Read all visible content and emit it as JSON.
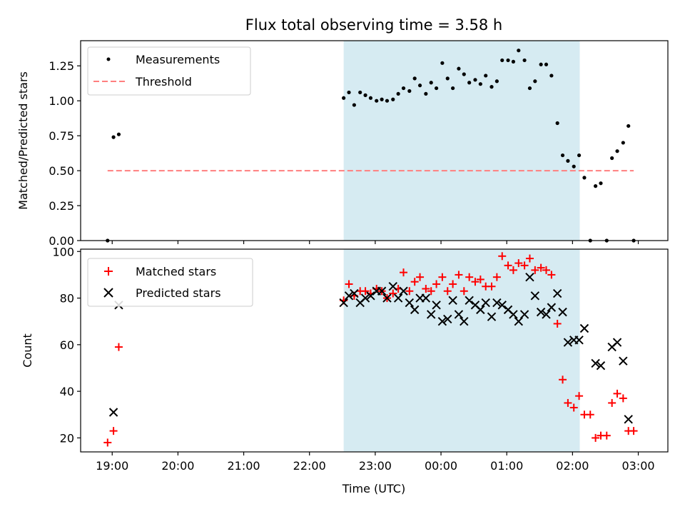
{
  "chart_data": {
    "type": "scatter",
    "title": "Flux total observing time = 3.58 h",
    "xlabel": "Time (UTC)",
    "x_ticks": [
      "19:00",
      "20:00",
      "21:00",
      "22:00",
      "23:00",
      "00:00",
      "01:00",
      "02:00",
      "03:00"
    ],
    "x_tick_hours": [
      19,
      20,
      21,
      22,
      23,
      24,
      25,
      26,
      27
    ],
    "xlim_hours": [
      18.52,
      27.45
    ],
    "shaded_region_hours": [
      22.52,
      26.11
    ],
    "shade_color": "#add8e6",
    "panels": [
      {
        "ylabel": "Matched/Predicted stars",
        "ylim": [
          0,
          1.43
        ],
        "y_ticks": [
          "0.00",
          "0.25",
          "0.50",
          "0.75",
          "1.00",
          "1.25"
        ],
        "y_tick_values": [
          0,
          0.25,
          0.5,
          0.75,
          1.0,
          1.25
        ],
        "legend_position": "upper-left",
        "series": [
          {
            "name": "Measurements",
            "marker": "dot",
            "color": "#000000",
            "x_hours": [
              18.93,
              19.02,
              19.1,
              22.52,
              22.6,
              22.68,
              22.77,
              22.85,
              22.93,
              23.02,
              23.1,
              23.18,
              23.27,
              23.35,
              23.43,
              23.52,
              23.6,
              23.68,
              23.77,
              23.85,
              23.93,
              24.02,
              24.1,
              24.18,
              24.27,
              24.35,
              24.43,
              24.52,
              24.6,
              24.68,
              24.77,
              24.85,
              24.93,
              25.02,
              25.1,
              25.18,
              25.27,
              25.35,
              25.43,
              25.52,
              25.6,
              25.68,
              25.77,
              25.85,
              25.93,
              26.02,
              26.1,
              26.18,
              26.27,
              26.35,
              26.43,
              26.52,
              26.6,
              26.68,
              26.77,
              26.85,
              26.93
            ],
            "values": [
              0.0,
              0.74,
              0.76,
              1.02,
              1.06,
              0.97,
              1.06,
              1.04,
              1.02,
              1.0,
              1.01,
              1.0,
              1.01,
              1.05,
              1.09,
              1.07,
              1.16,
              1.11,
              1.05,
              1.13,
              1.09,
              1.27,
              1.16,
              1.09,
              1.23,
              1.19,
              1.13,
              1.15,
              1.12,
              1.18,
              1.1,
              1.14,
              1.29,
              1.29,
              1.28,
              1.36,
              1.29,
              1.09,
              1.14,
              1.26,
              1.26,
              1.18,
              0.84,
              0.61,
              0.57,
              0.53,
              0.61,
              0.45,
              0.0,
              0.39,
              0.41,
              0.0,
              0.59,
              0.64,
              0.7,
              0.82,
              0.0
            ]
          },
          {
            "name": "Threshold",
            "marker": "dashed-line",
            "color": "#ff7f7f",
            "x_hours": [
              18.93,
              26.93
            ],
            "values": [
              0.5,
              0.5
            ]
          }
        ]
      },
      {
        "ylabel": "Count",
        "ylim": [
          14,
          101
        ],
        "y_ticks": [
          "20",
          "40",
          "60",
          "80",
          "100"
        ],
        "y_tick_values": [
          20,
          40,
          60,
          80,
          100
        ],
        "legend_position": "upper-left",
        "series": [
          {
            "name": "Matched stars",
            "marker": "plus",
            "color": "#ff0000",
            "x_hours": [
              18.93,
              19.02,
              19.1,
              22.52,
              22.6,
              22.68,
              22.77,
              22.85,
              22.93,
              23.02,
              23.1,
              23.18,
              23.27,
              23.35,
              23.43,
              23.52,
              23.6,
              23.68,
              23.77,
              23.85,
              23.93,
              24.02,
              24.1,
              24.18,
              24.27,
              24.35,
              24.43,
              24.52,
              24.6,
              24.68,
              24.77,
              24.85,
              24.93,
              25.02,
              25.1,
              25.18,
              25.27,
              25.35,
              25.43,
              25.52,
              25.6,
              25.68,
              25.77,
              25.85,
              25.93,
              26.02,
              26.1,
              26.18,
              26.27,
              26.35,
              26.43,
              26.52,
              26.6,
              26.68,
              26.77,
              26.85,
              26.93
            ],
            "values": [
              18,
              23,
              59,
              79,
              86,
              81,
              83,
              83,
              82,
              84,
              83,
              80,
              82,
              84,
              91,
              83,
              87,
              89,
              84,
              83,
              86,
              89,
              83,
              86,
              90,
              83,
              89,
              87,
              88,
              85,
              85,
              89,
              98,
              94,
              92,
              95,
              94,
              97,
              92,
              93,
              92,
              90,
              69,
              45,
              35,
              33,
              38,
              30,
              30,
              20,
              21,
              21,
              35,
              39,
              37,
              23,
              23
            ]
          },
          {
            "name": "Predicted stars",
            "marker": "x",
            "color": "#000000",
            "x_hours": [
              19.02,
              19.1,
              22.52,
              22.6,
              22.68,
              22.77,
              22.85,
              22.93,
              23.02,
              23.1,
              23.18,
              23.27,
              23.35,
              23.43,
              23.52,
              23.6,
              23.68,
              23.77,
              23.85,
              23.93,
              24.02,
              24.1,
              24.18,
              24.27,
              24.35,
              24.43,
              24.52,
              24.6,
              24.68,
              24.77,
              24.85,
              24.93,
              25.02,
              25.1,
              25.18,
              25.27,
              25.35,
              25.43,
              25.52,
              25.6,
              25.68,
              25.77,
              25.85,
              25.93,
              26.02,
              26.1,
              26.18,
              26.35,
              26.43,
              26.6,
              26.68,
              26.77,
              26.85
            ],
            "values": [
              31,
              77,
              78,
              81,
              82,
              78,
              80,
              81,
              83,
              83,
              80,
              85,
              80,
              83,
              78,
              75,
              80,
              80,
              73,
              77,
              70,
              71,
              79,
              73,
              70,
              79,
              77,
              75,
              78,
              72,
              78,
              77,
              75,
              73,
              70,
              73,
              89,
              81,
              74,
              73,
              76,
              82,
              74,
              61,
              62,
              62,
              67,
              52,
              51,
              59,
              61,
              53,
              28
            ]
          }
        ]
      }
    ]
  }
}
